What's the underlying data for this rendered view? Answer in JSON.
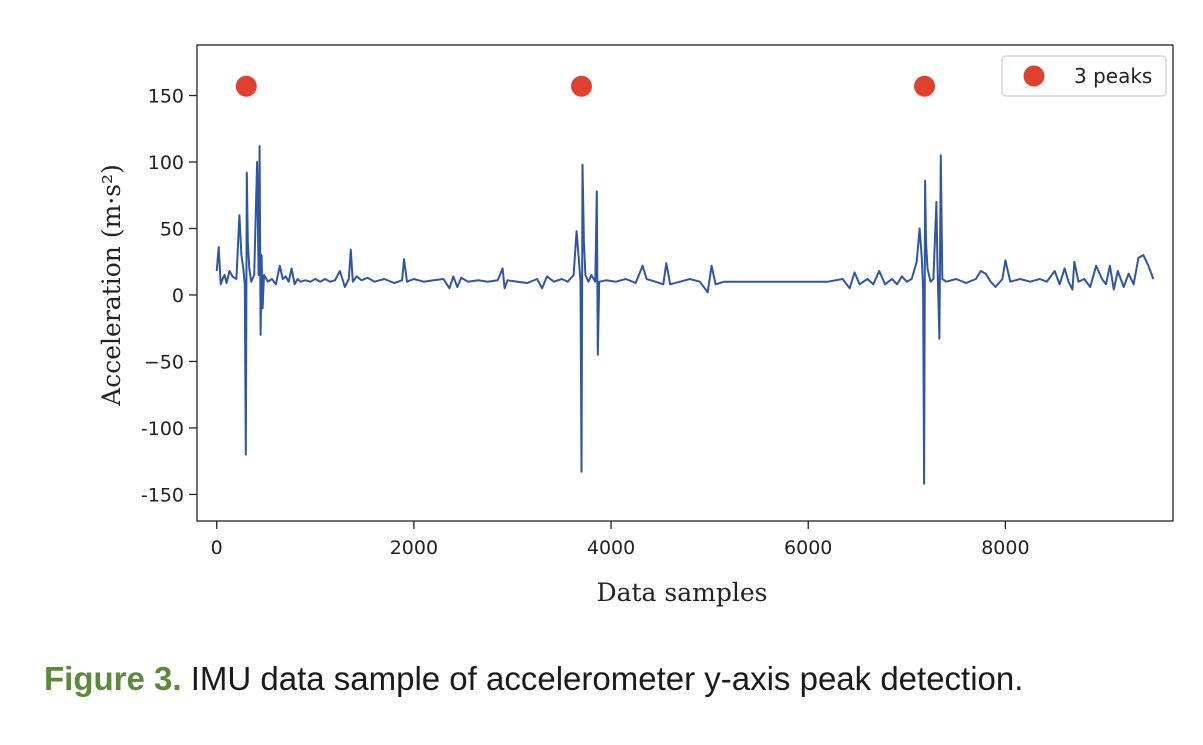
{
  "chart_data": {
    "type": "line",
    "title": "",
    "xlabel": "Data samples",
    "ylabel": "Acceleration (m·s²)",
    "xlim": [
      -200,
      9700
    ],
    "ylim": [
      -170,
      188
    ],
    "xticks": [
      0,
      2000,
      4000,
      6000,
      8000
    ],
    "xtick_labels": [
      "0",
      "2000",
      "4000",
      "6000",
      "8000"
    ],
    "yticks": [
      150,
      100,
      50,
      0,
      -50,
      -100,
      -150
    ],
    "ytick_labels": [
      "150",
      "100",
      "50",
      "0",
      "−50",
      "-100",
      "-150"
    ],
    "grid": false,
    "legend_position": "top-right",
    "line_color": "#2f55a4",
    "peak_color": "#e0412f",
    "series": [
      {
        "values": [
          [
            0,
            18
          ],
          [
            20,
            36
          ],
          [
            40,
            8
          ],
          [
            60,
            12
          ],
          [
            80,
            15
          ],
          [
            100,
            9
          ],
          [
            130,
            18
          ],
          [
            160,
            14
          ],
          [
            200,
            12
          ],
          [
            230,
            60
          ],
          [
            250,
            30
          ],
          [
            270,
            20
          ],
          [
            285,
            8
          ],
          [
            295,
            -120
          ],
          [
            305,
            92
          ],
          [
            315,
            40
          ],
          [
            330,
            20
          ],
          [
            350,
            10
          ],
          [
            380,
            15
          ],
          [
            410,
            100
          ],
          [
            425,
            15
          ],
          [
            435,
            112
          ],
          [
            445,
            -30
          ],
          [
            455,
            30
          ],
          [
            465,
            -10
          ],
          [
            480,
            15
          ],
          [
            520,
            10
          ],
          [
            560,
            12
          ],
          [
            600,
            8
          ],
          [
            640,
            22
          ],
          [
            670,
            12
          ],
          [
            700,
            14
          ],
          [
            730,
            10
          ],
          [
            760,
            20
          ],
          [
            790,
            8
          ],
          [
            820,
            12
          ],
          [
            850,
            10
          ],
          [
            900,
            11
          ],
          [
            950,
            10
          ],
          [
            1000,
            12
          ],
          [
            1050,
            10
          ],
          [
            1100,
            12
          ],
          [
            1150,
            10
          ],
          [
            1200,
            11
          ],
          [
            1250,
            18
          ],
          [
            1300,
            6
          ],
          [
            1340,
            12
          ],
          [
            1360,
            34
          ],
          [
            1380,
            10
          ],
          [
            1420,
            14
          ],
          [
            1470,
            11
          ],
          [
            1530,
            13
          ],
          [
            1600,
            10
          ],
          [
            1700,
            12
          ],
          [
            1800,
            9
          ],
          [
            1880,
            11
          ],
          [
            1900,
            27
          ],
          [
            1930,
            10
          ],
          [
            2000,
            12
          ],
          [
            2100,
            10
          ],
          [
            2200,
            11
          ],
          [
            2300,
            12
          ],
          [
            2360,
            5
          ],
          [
            2400,
            14
          ],
          [
            2440,
            6
          ],
          [
            2480,
            13
          ],
          [
            2550,
            10
          ],
          [
            2650,
            11
          ],
          [
            2750,
            10
          ],
          [
            2850,
            11
          ],
          [
            2900,
            20
          ],
          [
            2920,
            5
          ],
          [
            2950,
            11
          ],
          [
            3050,
            10
          ],
          [
            3150,
            9
          ],
          [
            3250,
            12
          ],
          [
            3300,
            5
          ],
          [
            3350,
            14
          ],
          [
            3420,
            10
          ],
          [
            3500,
            12
          ],
          [
            3560,
            10
          ],
          [
            3620,
            15
          ],
          [
            3650,
            48
          ],
          [
            3675,
            25
          ],
          [
            3690,
            10
          ],
          [
            3700,
            -133
          ],
          [
            3710,
            98
          ],
          [
            3725,
            40
          ],
          [
            3740,
            15
          ],
          [
            3770,
            10
          ],
          [
            3800,
            15
          ],
          [
            3840,
            10
          ],
          [
            3855,
            78
          ],
          [
            3865,
            -45
          ],
          [
            3880,
            10
          ],
          [
            3950,
            11
          ],
          [
            4050,
            10
          ],
          [
            4150,
            12
          ],
          [
            4250,
            9
          ],
          [
            4320,
            22
          ],
          [
            4360,
            12
          ],
          [
            4450,
            10
          ],
          [
            4530,
            8
          ],
          [
            4560,
            24
          ],
          [
            4600,
            8
          ],
          [
            4700,
            10
          ],
          [
            4800,
            12
          ],
          [
            4900,
            10
          ],
          [
            4980,
            2
          ],
          [
            5020,
            22
          ],
          [
            5060,
            8
          ],
          [
            5150,
            10
          ],
          [
            5300,
            10
          ],
          [
            5450,
            10
          ],
          [
            5600,
            10
          ],
          [
            5750,
            10
          ],
          [
            5900,
            10
          ],
          [
            6050,
            10
          ],
          [
            6200,
            10
          ],
          [
            6350,
            12
          ],
          [
            6420,
            5
          ],
          [
            6470,
            17
          ],
          [
            6520,
            8
          ],
          [
            6600,
            12
          ],
          [
            6660,
            8
          ],
          [
            6720,
            18
          ],
          [
            6780,
            8
          ],
          [
            6850,
            12
          ],
          [
            6900,
            8
          ],
          [
            6950,
            14
          ],
          [
            7000,
            10
          ],
          [
            7050,
            12
          ],
          [
            7100,
            25
          ],
          [
            7130,
            50
          ],
          [
            7150,
            30
          ],
          [
            7165,
            5
          ],
          [
            7175,
            -142
          ],
          [
            7185,
            86
          ],
          [
            7195,
            40
          ],
          [
            7210,
            20
          ],
          [
            7240,
            10
          ],
          [
            7270,
            12
          ],
          [
            7300,
            70
          ],
          [
            7310,
            25
          ],
          [
            7330,
            -33
          ],
          [
            7345,
            105
          ],
          [
            7360,
            12
          ],
          [
            7400,
            10
          ],
          [
            7500,
            12
          ],
          [
            7600,
            9
          ],
          [
            7700,
            12
          ],
          [
            7750,
            18
          ],
          [
            7800,
            16
          ],
          [
            7850,
            10
          ],
          [
            7900,
            6
          ],
          [
            7970,
            12
          ],
          [
            8000,
            26
          ],
          [
            8050,
            10
          ],
          [
            8150,
            12
          ],
          [
            8250,
            10
          ],
          [
            8350,
            12
          ],
          [
            8420,
            10
          ],
          [
            8500,
            18
          ],
          [
            8550,
            8
          ],
          [
            8600,
            20
          ],
          [
            8640,
            10
          ],
          [
            8680,
            4
          ],
          [
            8700,
            25
          ],
          [
            8740,
            10
          ],
          [
            8800,
            12
          ],
          [
            8860,
            6
          ],
          [
            8920,
            22
          ],
          [
            8980,
            12
          ],
          [
            9020,
            8
          ],
          [
            9060,
            22
          ],
          [
            9100,
            4
          ],
          [
            9140,
            18
          ],
          [
            9200,
            6
          ],
          [
            9250,
            16
          ],
          [
            9300,
            8
          ],
          [
            9350,
            28
          ],
          [
            9400,
            30
          ],
          [
            9450,
            22
          ],
          [
            9500,
            12
          ]
        ]
      }
    ],
    "peaks": {
      "name": "3 peaks",
      "points": [
        [
          300,
          157
        ],
        [
          3700,
          157
        ],
        [
          7180,
          157
        ]
      ]
    }
  },
  "caption": {
    "label": "Figure 3.",
    "text": " IMU data sample of accelerometer y-axis peak detection."
  }
}
